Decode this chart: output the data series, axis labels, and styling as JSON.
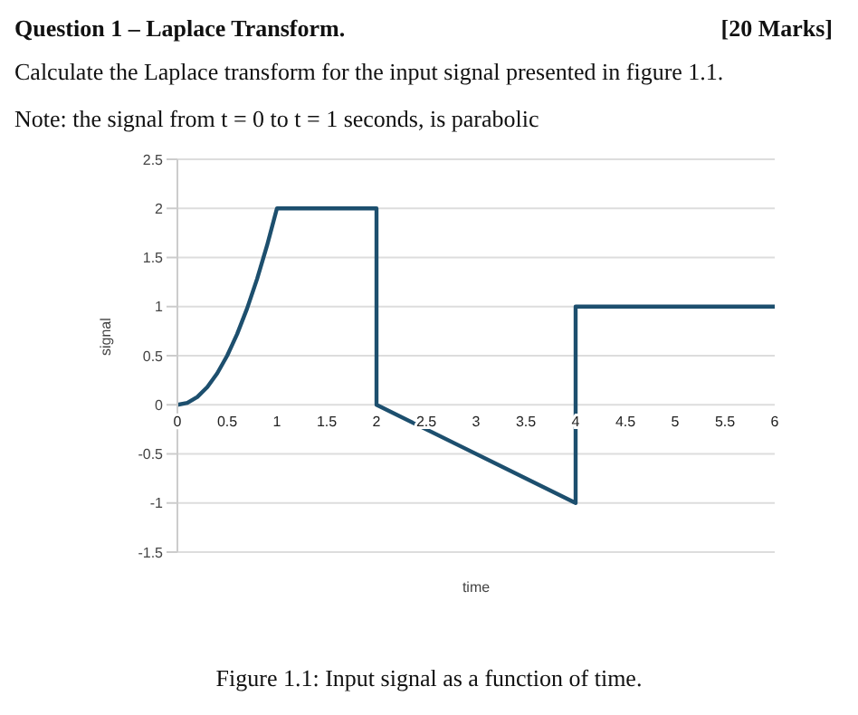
{
  "chart_data": {
    "type": "line",
    "title": "Question 1 – Laplace Transform.",
    "annotations": [
      "[20 Marks]",
      "Calculate the Laplace transform for the input signal presented in figure 1.1.",
      "Note: the signal from t = 0 to t = 1 seconds, is parabolic",
      "Figure 1.1: Input signal as a function of time."
    ],
    "xlabel": "time",
    "ylabel": "signal",
    "x": [
      0,
      0.1,
      0.2,
      0.3,
      0.4,
      0.5,
      0.6,
      0.7,
      0.8,
      0.9,
      1,
      2,
      2,
      4,
      4,
      6
    ],
    "series": [
      {
        "color": "#1d4f6e",
        "values": [
          0,
          0.02,
          0.08,
          0.18,
          0.32,
          0.5,
          0.72,
          0.98,
          1.28,
          1.62,
          2,
          2,
          0,
          -1,
          1,
          1
        ]
      }
    ],
    "xlim": [
      0,
      6
    ],
    "xticks": [
      0,
      0.5,
      1,
      1.5,
      2,
      2.5,
      3,
      3.5,
      4,
      4.5,
      5,
      5.5,
      6
    ],
    "ylim": [
      -1.5,
      2.5
    ],
    "yticks": [
      -1.5,
      -1,
      -0.5,
      0,
      0.5,
      1,
      1.5,
      2,
      2.5
    ],
    "grid": "y",
    "marker": "none",
    "line_style": "solid"
  }
}
